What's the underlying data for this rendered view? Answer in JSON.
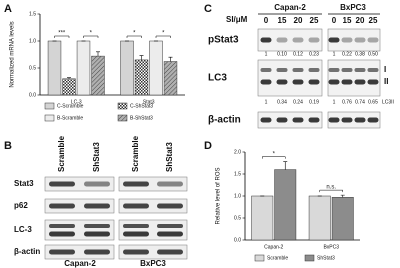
{
  "panel_labels": [
    "A",
    "B",
    "C",
    "D"
  ],
  "chart_data": [
    {
      "type": "bar",
      "y_label": "Normalized mRNA levels",
      "categories": [
        "LC-3",
        "Stat3"
      ],
      "series": [
        {
          "name": "C-Scramble",
          "color": "#d4d4d4",
          "values": [
            1.0,
            1.0
          ],
          "errors": [
            0.0,
            0.0
          ]
        },
        {
          "name": "C-ShStat3",
          "color": "#ffffff",
          "pattern": "check",
          "values": [
            0.3,
            0.65
          ],
          "errors": [
            0.02,
            0.08
          ]
        },
        {
          "name": "B-Scramble",
          "color": "#ececec",
          "values": [
            1.0,
            1.0
          ],
          "errors": [
            0.0,
            0.0
          ]
        },
        {
          "name": "B-ShStat3",
          "color": "#b0b0b0",
          "pattern": "hatch",
          "values": [
            0.72,
            0.62
          ],
          "errors": [
            0.08,
            0.08
          ]
        }
      ],
      "annotations": [
        "***",
        "*",
        "*",
        "*"
      ],
      "ylim": [
        0,
        1.5
      ],
      "yticks": [
        {
          "value": 0,
          "label": "0.0"
        },
        0.5,
        {
          "value": 1,
          "label": "1.0"
        },
        1.5
      ],
      "legend": "bottom"
    },
    {
      "type": "bar",
      "y_label": "Relative level of ROS",
      "categories": [
        "Capan-2",
        "BxPC3"
      ],
      "series": [
        {
          "name": "Scramble",
          "color": "#d9d9d9",
          "values": [
            1.0,
            1.0
          ],
          "errors": [
            0.0,
            0.0
          ]
        },
        {
          "name": "ShStat3",
          "color": "#8c8c8c",
          "values": [
            1.6,
            0.97
          ],
          "errors": [
            0.18,
            0.05
          ]
        }
      ],
      "annotations": [
        "*",
        "n.s."
      ],
      "ylim": [
        0,
        2
      ],
      "yticks": [
        {
          "value": 0,
          "label": "0.0"
        },
        0.5,
        {
          "value": 1,
          "label": "1.0"
        },
        1.5,
        {
          "value": 2,
          "label": "2.0"
        }
      ],
      "legend": "bottom"
    }
  ],
  "blot_b": {
    "lane_labels": [
      "Scramble",
      "ShStat3",
      "Scramble",
      "ShStat3"
    ],
    "rows": [
      "Stat3",
      "p62",
      "LC-3",
      "β-actin"
    ],
    "groups": [
      "Capan-2",
      "BxPC3"
    ]
  },
  "blot_c": {
    "dose_label": "SI/μM",
    "groups": [
      "Capan-2",
      "BxPC3"
    ],
    "doses": [
      "0",
      "15",
      "20",
      "25",
      "0",
      "15",
      "20",
      "25"
    ],
    "rows": [
      {
        "label": "pStat3",
        "quant": [
          "1",
          "0.10",
          "0.12",
          "0.23",
          "1",
          "0.22",
          "0.38",
          "0.50"
        ]
      },
      {
        "label": "LC3",
        "quant": [
          "1",
          "0.34",
          "0.24",
          "0.19",
          "1",
          "0.76",
          "0.74",
          "0.65"
        ],
        "bands": [
          "I",
          "II"
        ],
        "note": "LC3II"
      },
      {
        "label": "β-actin"
      }
    ]
  }
}
